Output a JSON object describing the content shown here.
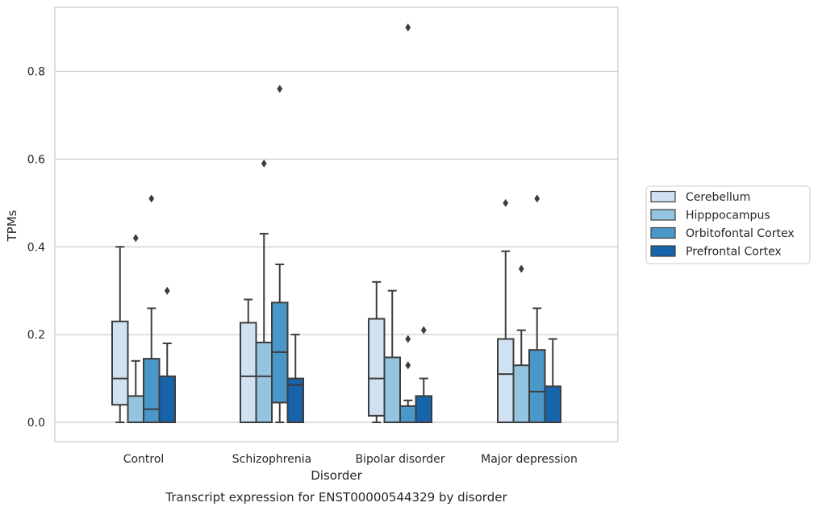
{
  "chart_data": {
    "type": "box",
    "title": "",
    "caption": "Transcript expression for ENST00000544329 by disorder",
    "xlabel": "Disorder",
    "ylabel": "TPMs",
    "ylim": [
      -0.045,
      0.945
    ],
    "yticks": [
      0.0,
      0.2,
      0.4,
      0.6,
      0.8
    ],
    "ytick_labels": [
      "0.0",
      "0.2",
      "0.4",
      "0.6",
      "0.8"
    ],
    "grid": "horizontal",
    "legend_position": "right",
    "categories": [
      "Control",
      "Schizophrenia",
      "Bipolar disorder",
      "Major depression"
    ],
    "series": [
      {
        "name": "Cerebellum",
        "color": "#d0e1f2",
        "boxes": [
          {
            "whislo": 0.0,
            "q1": 0.04,
            "med": 0.1,
            "q3": 0.23,
            "whishi": 0.4,
            "fliers": []
          },
          {
            "whislo": 0.0,
            "q1": 0.0,
            "med": 0.105,
            "q3": 0.227,
            "whishi": 0.28,
            "fliers": []
          },
          {
            "whislo": 0.0,
            "q1": 0.015,
            "med": 0.1,
            "q3": 0.236,
            "whishi": 0.32,
            "fliers": []
          },
          {
            "whislo": 0.0,
            "q1": 0.0,
            "med": 0.11,
            "q3": 0.19,
            "whishi": 0.39,
            "fliers": [
              0.5
            ]
          }
        ]
      },
      {
        "name": "Hipppocampus",
        "color": "#94c4df",
        "boxes": [
          {
            "whislo": 0.0,
            "q1": 0.0,
            "med": 0.0,
            "q3": 0.06,
            "whishi": 0.14,
            "fliers": [
              0.42
            ]
          },
          {
            "whislo": 0.0,
            "q1": 0.0,
            "med": 0.105,
            "q3": 0.182,
            "whishi": 0.43,
            "fliers": [
              0.59
            ]
          },
          {
            "whislo": 0.0,
            "q1": 0.0,
            "med": 0.0,
            "q3": 0.148,
            "whishi": 0.3,
            "fliers": []
          },
          {
            "whislo": 0.0,
            "q1": 0.0,
            "med": 0.0,
            "q3": 0.13,
            "whishi": 0.21,
            "fliers": [
              0.35
            ]
          }
        ]
      },
      {
        "name": "Orbitofontal Cortex",
        "color": "#4a98c9",
        "boxes": [
          {
            "whislo": 0.0,
            "q1": 0.0,
            "med": 0.03,
            "q3": 0.145,
            "whishi": 0.26,
            "fliers": [
              0.51
            ]
          },
          {
            "whislo": 0.0,
            "q1": 0.045,
            "med": 0.16,
            "q3": 0.273,
            "whishi": 0.36,
            "fliers": [
              0.76
            ]
          },
          {
            "whislo": 0.0,
            "q1": 0.0,
            "med": 0.0,
            "q3": 0.037,
            "whishi": 0.05,
            "fliers": [
              0.13,
              0.19,
              0.9
            ]
          },
          {
            "whislo": 0.0,
            "q1": 0.0,
            "med": 0.07,
            "q3": 0.165,
            "whishi": 0.26,
            "fliers": [
              0.51
            ]
          }
        ]
      },
      {
        "name": "Prefrontal Cortex",
        "color": "#1764ab",
        "boxes": [
          {
            "whislo": 0.0,
            "q1": 0.0,
            "med": 0.0,
            "q3": 0.105,
            "whishi": 0.18,
            "fliers": [
              0.3
            ]
          },
          {
            "whislo": 0.0,
            "q1": 0.0,
            "med": 0.085,
            "q3": 0.1,
            "whishi": 0.2,
            "fliers": []
          },
          {
            "whislo": 0.0,
            "q1": 0.0,
            "med": 0.0,
            "q3": 0.06,
            "whishi": 0.1,
            "fliers": [
              0.21
            ]
          },
          {
            "whislo": 0.0,
            "q1": 0.0,
            "med": 0.0,
            "q3": 0.082,
            "whishi": 0.19,
            "fliers": []
          }
        ]
      }
    ]
  }
}
